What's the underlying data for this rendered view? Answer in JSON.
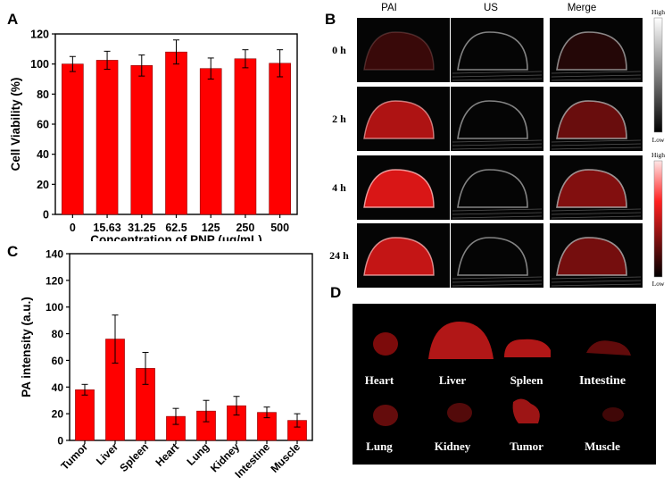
{
  "panels": {
    "A": "A",
    "B": "B",
    "C": "C",
    "D": "D"
  },
  "colors": {
    "bar": "#ff0000",
    "bar_stroke": "#8b0000",
    "pa_red": "#ff1a1a"
  },
  "chart_data": [
    {
      "type": "bar",
      "panel": "A",
      "categories": [
        "0",
        "15.63",
        "31.25",
        "62.5",
        "125",
        "250",
        "500"
      ],
      "values": [
        100,
        102.5,
        99,
        108,
        97,
        103.5,
        100.5
      ],
      "errors": [
        5,
        6,
        7,
        8,
        7,
        6,
        9
      ],
      "title": "",
      "xlabel": "Concentration of PNP (μg/mL)",
      "ylabel": "Cell Viability (%)",
      "ylim": [
        0,
        120
      ],
      "yticks": [
        "0",
        "20",
        "40",
        "60",
        "80",
        "100",
        "120"
      ],
      "grid": false
    },
    {
      "type": "bar",
      "panel": "C",
      "categories": [
        "Tumor",
        "Liver",
        "Spleen",
        "Heart",
        "Lung",
        "Kidney",
        "Intestine",
        "Muscle"
      ],
      "values": [
        38,
        76,
        54,
        18,
        22,
        26,
        21,
        15
      ],
      "errors": [
        4,
        18,
        12,
        6,
        8,
        7,
        4,
        5
      ],
      "title": "",
      "xlabel": "",
      "ylabel": "PA intensity (a.u.)",
      "ylim": [
        0,
        140
      ],
      "yticks": [
        "0",
        "20",
        "40",
        "60",
        "80",
        "100",
        "120",
        "140"
      ],
      "grid": false
    }
  ],
  "imaging": {
    "columns": [
      "PAI",
      "US",
      "Merge"
    ],
    "rows": [
      "0 h",
      "2 h",
      "4 h",
      "24 h"
    ],
    "row_intensity": [
      0.25,
      0.8,
      1.0,
      0.9
    ],
    "scale_gray": {
      "high": "High",
      "low": "Low"
    },
    "scale_red": {
      "high": "High",
      "low": "Low"
    }
  },
  "organs": {
    "row1": [
      "Heart",
      "Liver",
      "Spleen",
      "Intestine"
    ],
    "row2": [
      "Lung",
      "Kidney",
      "Tumor",
      "Muscle"
    ]
  }
}
